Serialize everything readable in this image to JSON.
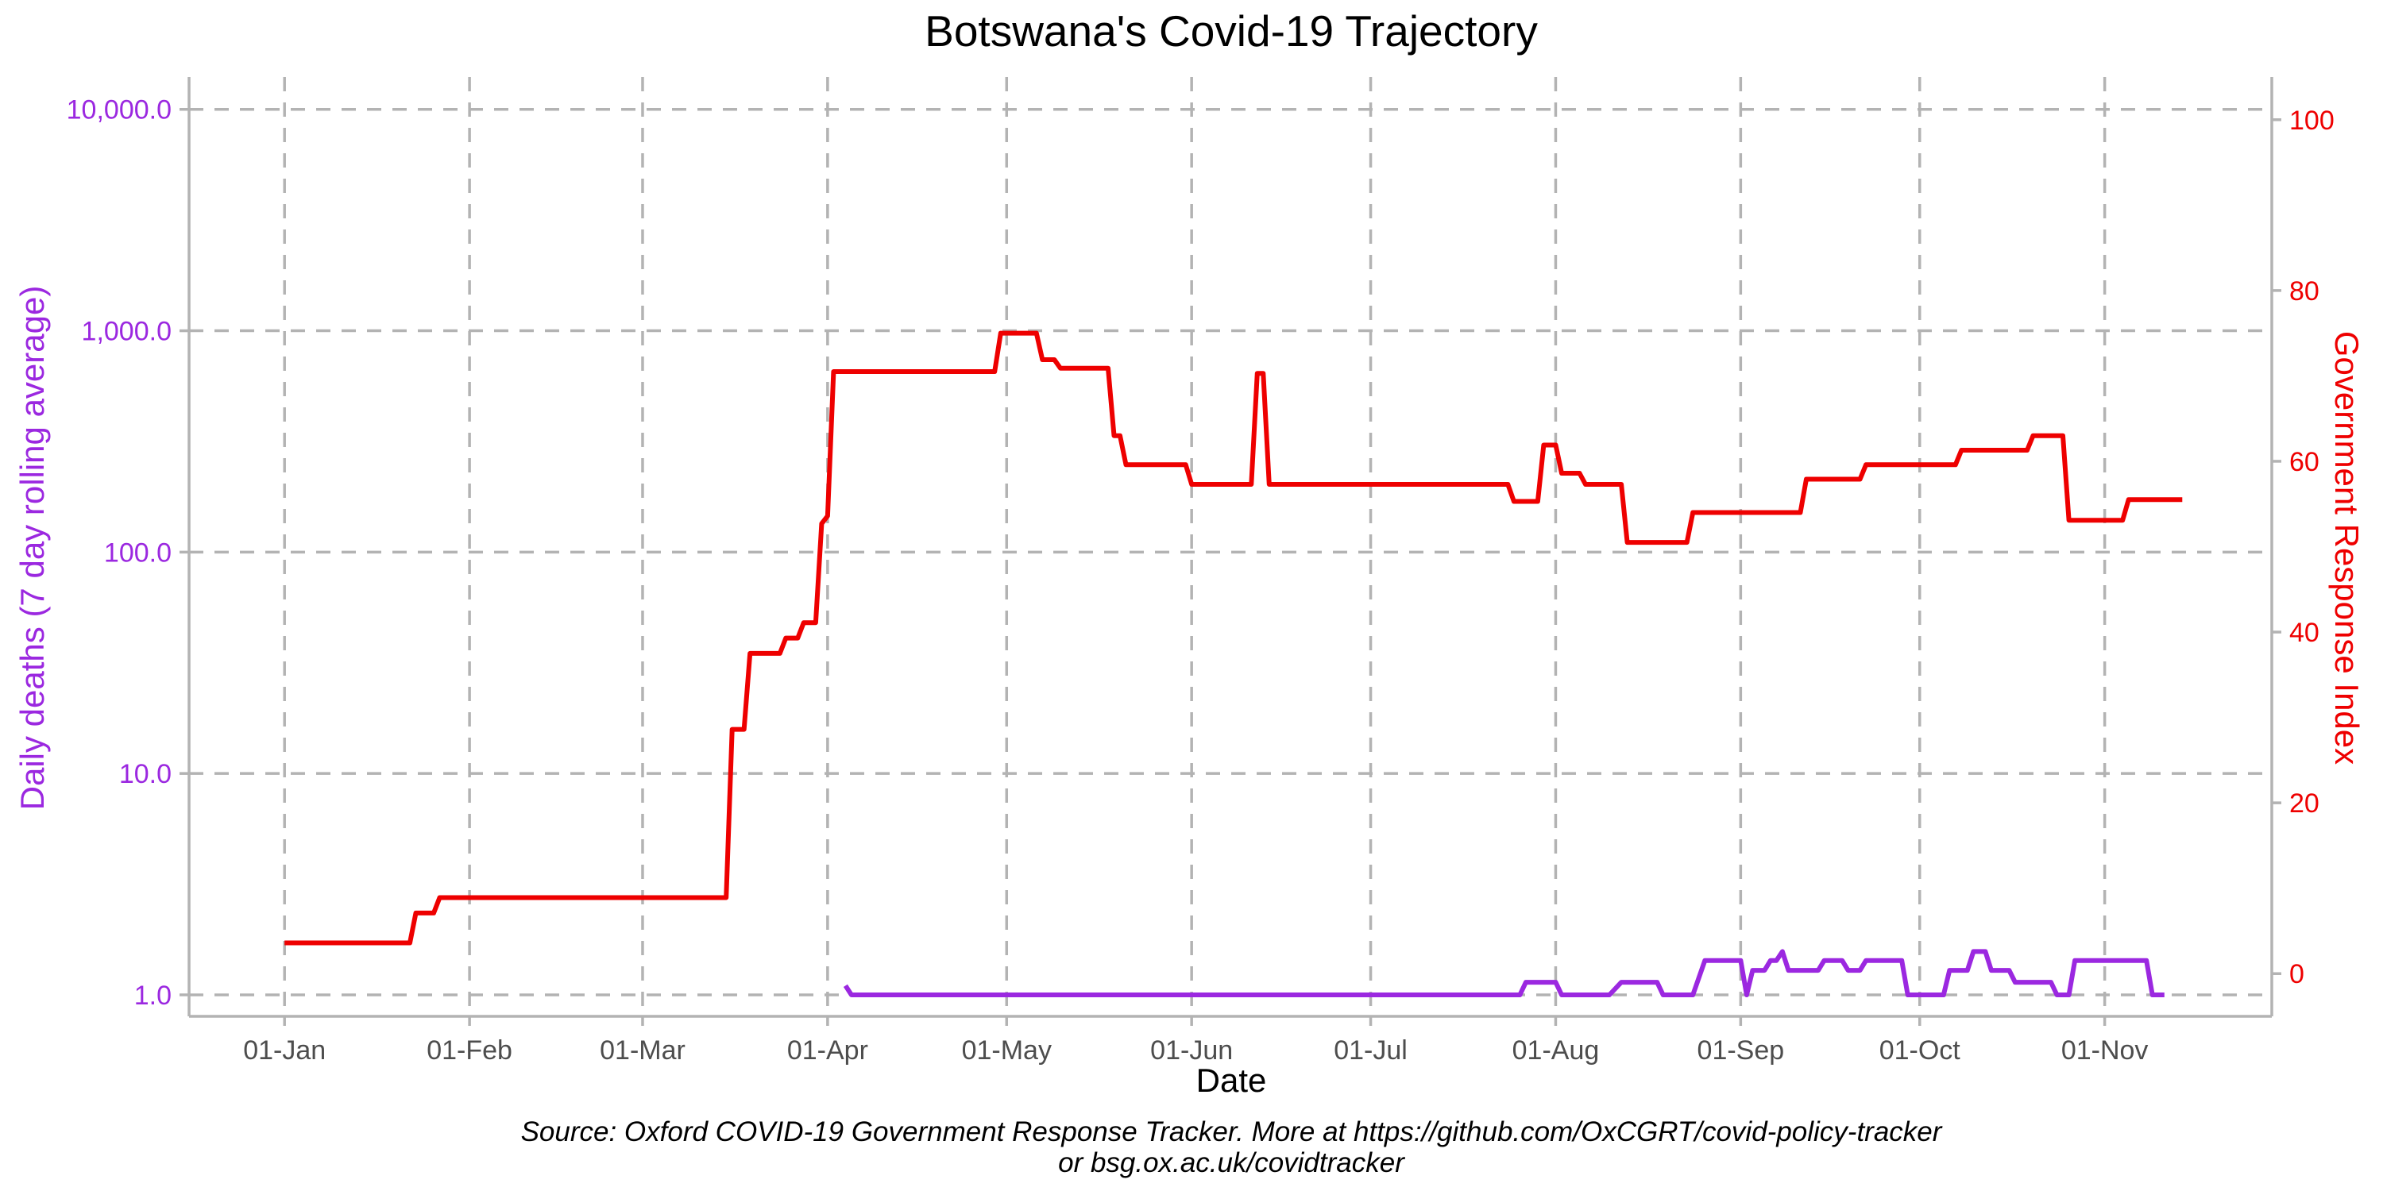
{
  "chart_data": {
    "type": "line",
    "title": "Botswana's Covid-19 Trajectory",
    "xlabel": "Date",
    "ylabel_left": "Daily deaths (7 day rolling average)",
    "ylabel_right": "Government Response Index",
    "caption_line1": "Source: Oxford COVID-19 Government Response Tracker. More at https://github.com/OxCGRT/covid-policy-tracker",
    "caption_line2": "or bsg.ox.ac.uk/covidtracker",
    "x_ticks": [
      {
        "date": "2020-01-01",
        "label": "01-Jan"
      },
      {
        "date": "2020-02-01",
        "label": "01-Feb"
      },
      {
        "date": "2020-03-01",
        "label": "01-Mar"
      },
      {
        "date": "2020-04-01",
        "label": "01-Apr"
      },
      {
        "date": "2020-05-01",
        "label": "01-May"
      },
      {
        "date": "2020-06-01",
        "label": "01-Jun"
      },
      {
        "date": "2020-07-01",
        "label": "01-Jul"
      },
      {
        "date": "2020-08-01",
        "label": "01-Aug"
      },
      {
        "date": "2020-09-01",
        "label": "01-Sep"
      },
      {
        "date": "2020-10-01",
        "label": "01-Oct"
      },
      {
        "date": "2020-11-01",
        "label": "01-Nov"
      }
    ],
    "x_range": [
      "2019-12-16",
      "2020-11-29"
    ],
    "y_left": {
      "scale": "log",
      "range": [
        0.8,
        14000
      ],
      "ticks": [
        {
          "value": 1,
          "label": "1.0"
        },
        {
          "value": 10,
          "label": "10.0"
        },
        {
          "value": 100,
          "label": "100.0"
        },
        {
          "value": 1000,
          "label": "1,000.0"
        },
        {
          "value": 10000,
          "label": "10,000.0"
        }
      ]
    },
    "y_right": {
      "scale": "linear",
      "range": [
        -5,
        105
      ],
      "ticks": [
        {
          "value": 0,
          "label": "0"
        },
        {
          "value": 20,
          "label": "20"
        },
        {
          "value": 40,
          "label": "40"
        },
        {
          "value": 60,
          "label": "60"
        },
        {
          "value": 80,
          "label": "80"
        },
        {
          "value": 100,
          "label": "100"
        }
      ]
    },
    "grid": true,
    "series": [
      {
        "name": "Daily deaths",
        "axis": "left",
        "color": "#9b28e0",
        "points": [
          [
            "2020-04-04",
            1.1
          ],
          [
            "2020-04-05",
            1.0
          ],
          [
            "2020-07-26",
            1.0
          ],
          [
            "2020-07-27",
            1.14
          ],
          [
            "2020-08-01",
            1.14
          ],
          [
            "2020-08-02",
            1.0
          ],
          [
            "2020-08-10",
            1.0
          ],
          [
            "2020-08-12",
            1.14
          ],
          [
            "2020-08-18",
            1.14
          ],
          [
            "2020-08-19",
            1.0
          ],
          [
            "2020-08-24",
            1.0
          ],
          [
            "2020-08-26",
            1.43
          ],
          [
            "2020-09-01",
            1.43
          ],
          [
            "2020-09-02",
            1.0
          ],
          [
            "2020-09-03",
            1.29
          ],
          [
            "2020-09-05",
            1.29
          ],
          [
            "2020-09-06",
            1.43
          ],
          [
            "2020-09-07",
            1.43
          ],
          [
            "2020-09-08",
            1.57
          ],
          [
            "2020-09-09",
            1.29
          ],
          [
            "2020-09-14",
            1.29
          ],
          [
            "2020-09-15",
            1.43
          ],
          [
            "2020-09-18",
            1.43
          ],
          [
            "2020-09-19",
            1.29
          ],
          [
            "2020-09-21",
            1.29
          ],
          [
            "2020-09-22",
            1.43
          ],
          [
            "2020-09-28",
            1.43
          ],
          [
            "2020-09-29",
            1.0
          ],
          [
            "2020-10-05",
            1.0
          ],
          [
            "2020-10-06",
            1.29
          ],
          [
            "2020-10-09",
            1.29
          ],
          [
            "2020-10-10",
            1.57
          ],
          [
            "2020-10-12",
            1.57
          ],
          [
            "2020-10-13",
            1.29
          ],
          [
            "2020-10-16",
            1.29
          ],
          [
            "2020-10-17",
            1.14
          ],
          [
            "2020-10-23",
            1.14
          ],
          [
            "2020-10-24",
            1.0
          ],
          [
            "2020-10-26",
            1.0
          ],
          [
            "2020-10-27",
            1.43
          ],
          [
            "2020-11-08",
            1.43
          ],
          [
            "2020-11-09",
            1.0
          ],
          [
            "2020-11-11",
            1.0
          ]
        ]
      },
      {
        "name": "Government Response Index",
        "axis": "right",
        "color": "#ee0000",
        "points": [
          [
            "2020-01-01",
            3.6
          ],
          [
            "2020-01-22",
            3.6
          ],
          [
            "2020-01-23",
            7.1
          ],
          [
            "2020-01-26",
            7.1
          ],
          [
            "2020-01-27",
            8.9
          ],
          [
            "2020-03-15",
            8.9
          ],
          [
            "2020-03-16",
            28.6
          ],
          [
            "2020-03-18",
            28.6
          ],
          [
            "2020-03-19",
            37.5
          ],
          [
            "2020-03-24",
            37.5
          ],
          [
            "2020-03-25",
            39.3
          ],
          [
            "2020-03-27",
            39.3
          ],
          [
            "2020-03-28",
            41.1
          ],
          [
            "2020-03-30",
            41.1
          ],
          [
            "2020-03-31",
            52.7
          ],
          [
            "2020-04-01",
            53.6
          ],
          [
            "2020-04-02",
            70.5
          ],
          [
            "2020-04-29",
            70.5
          ],
          [
            "2020-04-30",
            75.0
          ],
          [
            "2020-05-06",
            75.0
          ],
          [
            "2020-05-07",
            71.9
          ],
          [
            "2020-05-09",
            71.9
          ],
          [
            "2020-05-10",
            70.9
          ],
          [
            "2020-05-18",
            70.9
          ],
          [
            "2020-05-19",
            63.0
          ],
          [
            "2020-05-20",
            63.0
          ],
          [
            "2020-05-21",
            59.6
          ],
          [
            "2020-05-31",
            59.6
          ],
          [
            "2020-06-01",
            57.3
          ],
          [
            "2020-06-11",
            57.3
          ],
          [
            "2020-06-12",
            70.3
          ],
          [
            "2020-06-13",
            70.3
          ],
          [
            "2020-06-14",
            57.3
          ],
          [
            "2020-07-24",
            57.3
          ],
          [
            "2020-07-25",
            55.3
          ],
          [
            "2020-07-29",
            55.3
          ],
          [
            "2020-07-30",
            61.9
          ],
          [
            "2020-08-01",
            61.9
          ],
          [
            "2020-08-02",
            58.6
          ],
          [
            "2020-08-05",
            58.6
          ],
          [
            "2020-08-06",
            57.3
          ],
          [
            "2020-08-12",
            57.3
          ],
          [
            "2020-08-13",
            50.5
          ],
          [
            "2020-08-23",
            50.5
          ],
          [
            "2020-08-24",
            54.0
          ],
          [
            "2020-09-11",
            54.0
          ],
          [
            "2020-09-12",
            57.9
          ],
          [
            "2020-09-21",
            57.9
          ],
          [
            "2020-09-22",
            59.6
          ],
          [
            "2020-10-07",
            59.6
          ],
          [
            "2020-10-08",
            61.3
          ],
          [
            "2020-10-19",
            61.3
          ],
          [
            "2020-10-20",
            63.0
          ],
          [
            "2020-10-25",
            63.0
          ],
          [
            "2020-10-26",
            53.1
          ],
          [
            "2020-11-04",
            53.1
          ],
          [
            "2020-11-05",
            55.5
          ],
          [
            "2020-11-14",
            55.5
          ]
        ]
      }
    ]
  },
  "colors": {
    "left_axis": "#9b28e0",
    "right_axis": "#ee0000",
    "grid": "#b3b3b3",
    "tick_label": "#4d4d4d"
  }
}
